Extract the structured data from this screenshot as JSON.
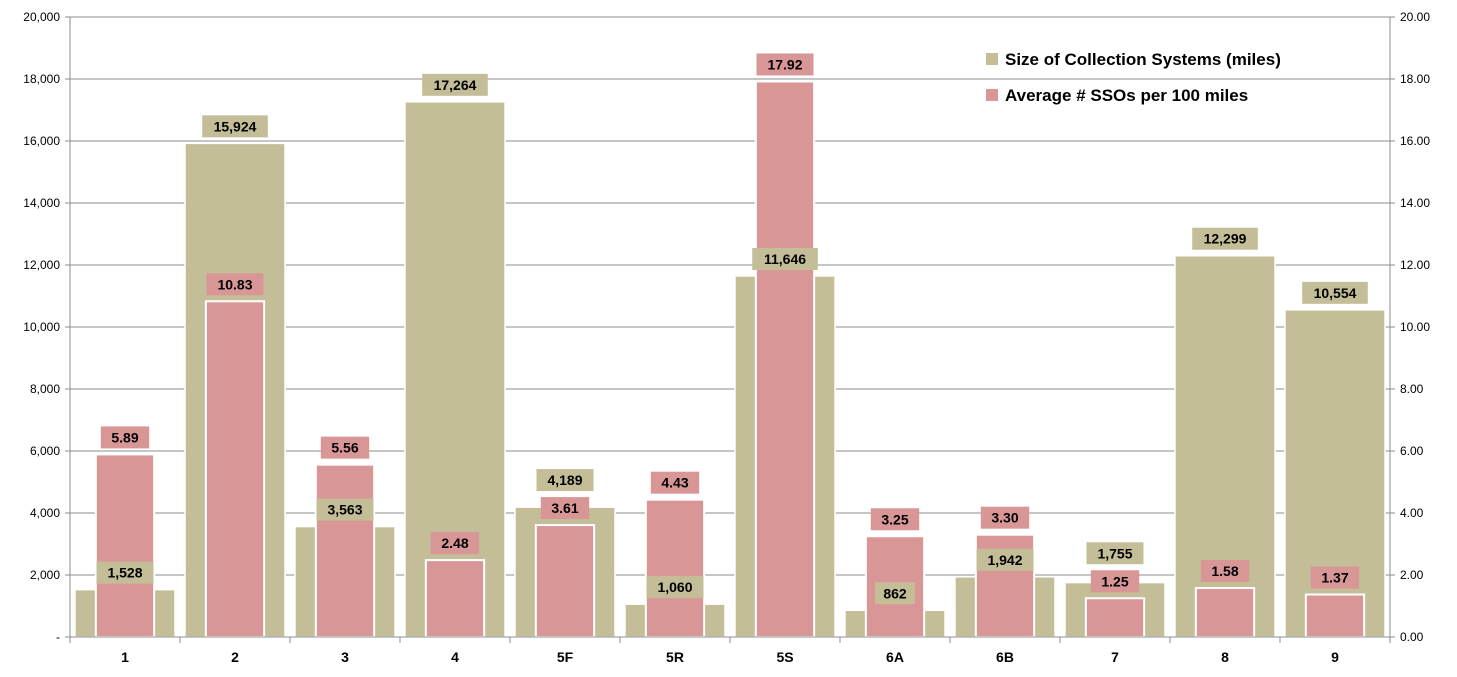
{
  "chart_data": {
    "type": "bar",
    "categories": [
      "1",
      "2",
      "3",
      "4",
      "5F",
      "5R",
      "5S",
      "6A",
      "6B",
      "7",
      "8",
      "9"
    ],
    "series": [
      {
        "name": "Size of Collection Systems (miles)",
        "axis": "left",
        "color": "#c4be98",
        "values": [
          1528,
          15924,
          3563,
          17264,
          4189,
          1060,
          11646,
          862,
          1942,
          1755,
          12299,
          10554
        ],
        "labels": [
          "1,528",
          "15,924",
          "3,563",
          "17,264",
          "4,189",
          "1,060",
          "11,646",
          "862",
          "1,942",
          "1,755",
          "12,299",
          "10,554"
        ]
      },
      {
        "name": "Average # SSOs per 100 miles",
        "axis": "right",
        "color": "#d99696",
        "values": [
          5.89,
          10.83,
          5.56,
          2.48,
          3.61,
          4.43,
          17.92,
          3.25,
          3.3,
          1.25,
          1.58,
          1.37
        ],
        "labels": [
          "5.89",
          "10.83",
          "5.56",
          "2.48",
          "3.61",
          "4.43",
          "17.92",
          "3.25",
          "3.30",
          "1.25",
          "1.58",
          "1.37"
        ]
      }
    ],
    "y_left": {
      "lim": [
        0,
        20000
      ],
      "ticks": [
        0,
        2000,
        4000,
        6000,
        8000,
        10000,
        12000,
        14000,
        16000,
        18000,
        20000
      ],
      "tick_labels": [
        "-",
        "2,000",
        "4,000",
        "6,000",
        "8,000",
        "10,000",
        "12,000",
        "14,000",
        "16,000",
        "18,000",
        "20,000"
      ]
    },
    "y_right": {
      "lim": [
        0,
        20
      ],
      "ticks": [
        0,
        2,
        4,
        6,
        8,
        10,
        12,
        14,
        16,
        18,
        20
      ],
      "tick_labels": [
        "0.00",
        "2.00",
        "4.00",
        "6.00",
        "8.00",
        "10.00",
        "12.00",
        "14.00",
        "16.00",
        "18.00",
        "20.00"
      ]
    },
    "grid": true,
    "legend": "top-right",
    "title": "",
    "xlabel": "",
    "ylabel": ""
  }
}
